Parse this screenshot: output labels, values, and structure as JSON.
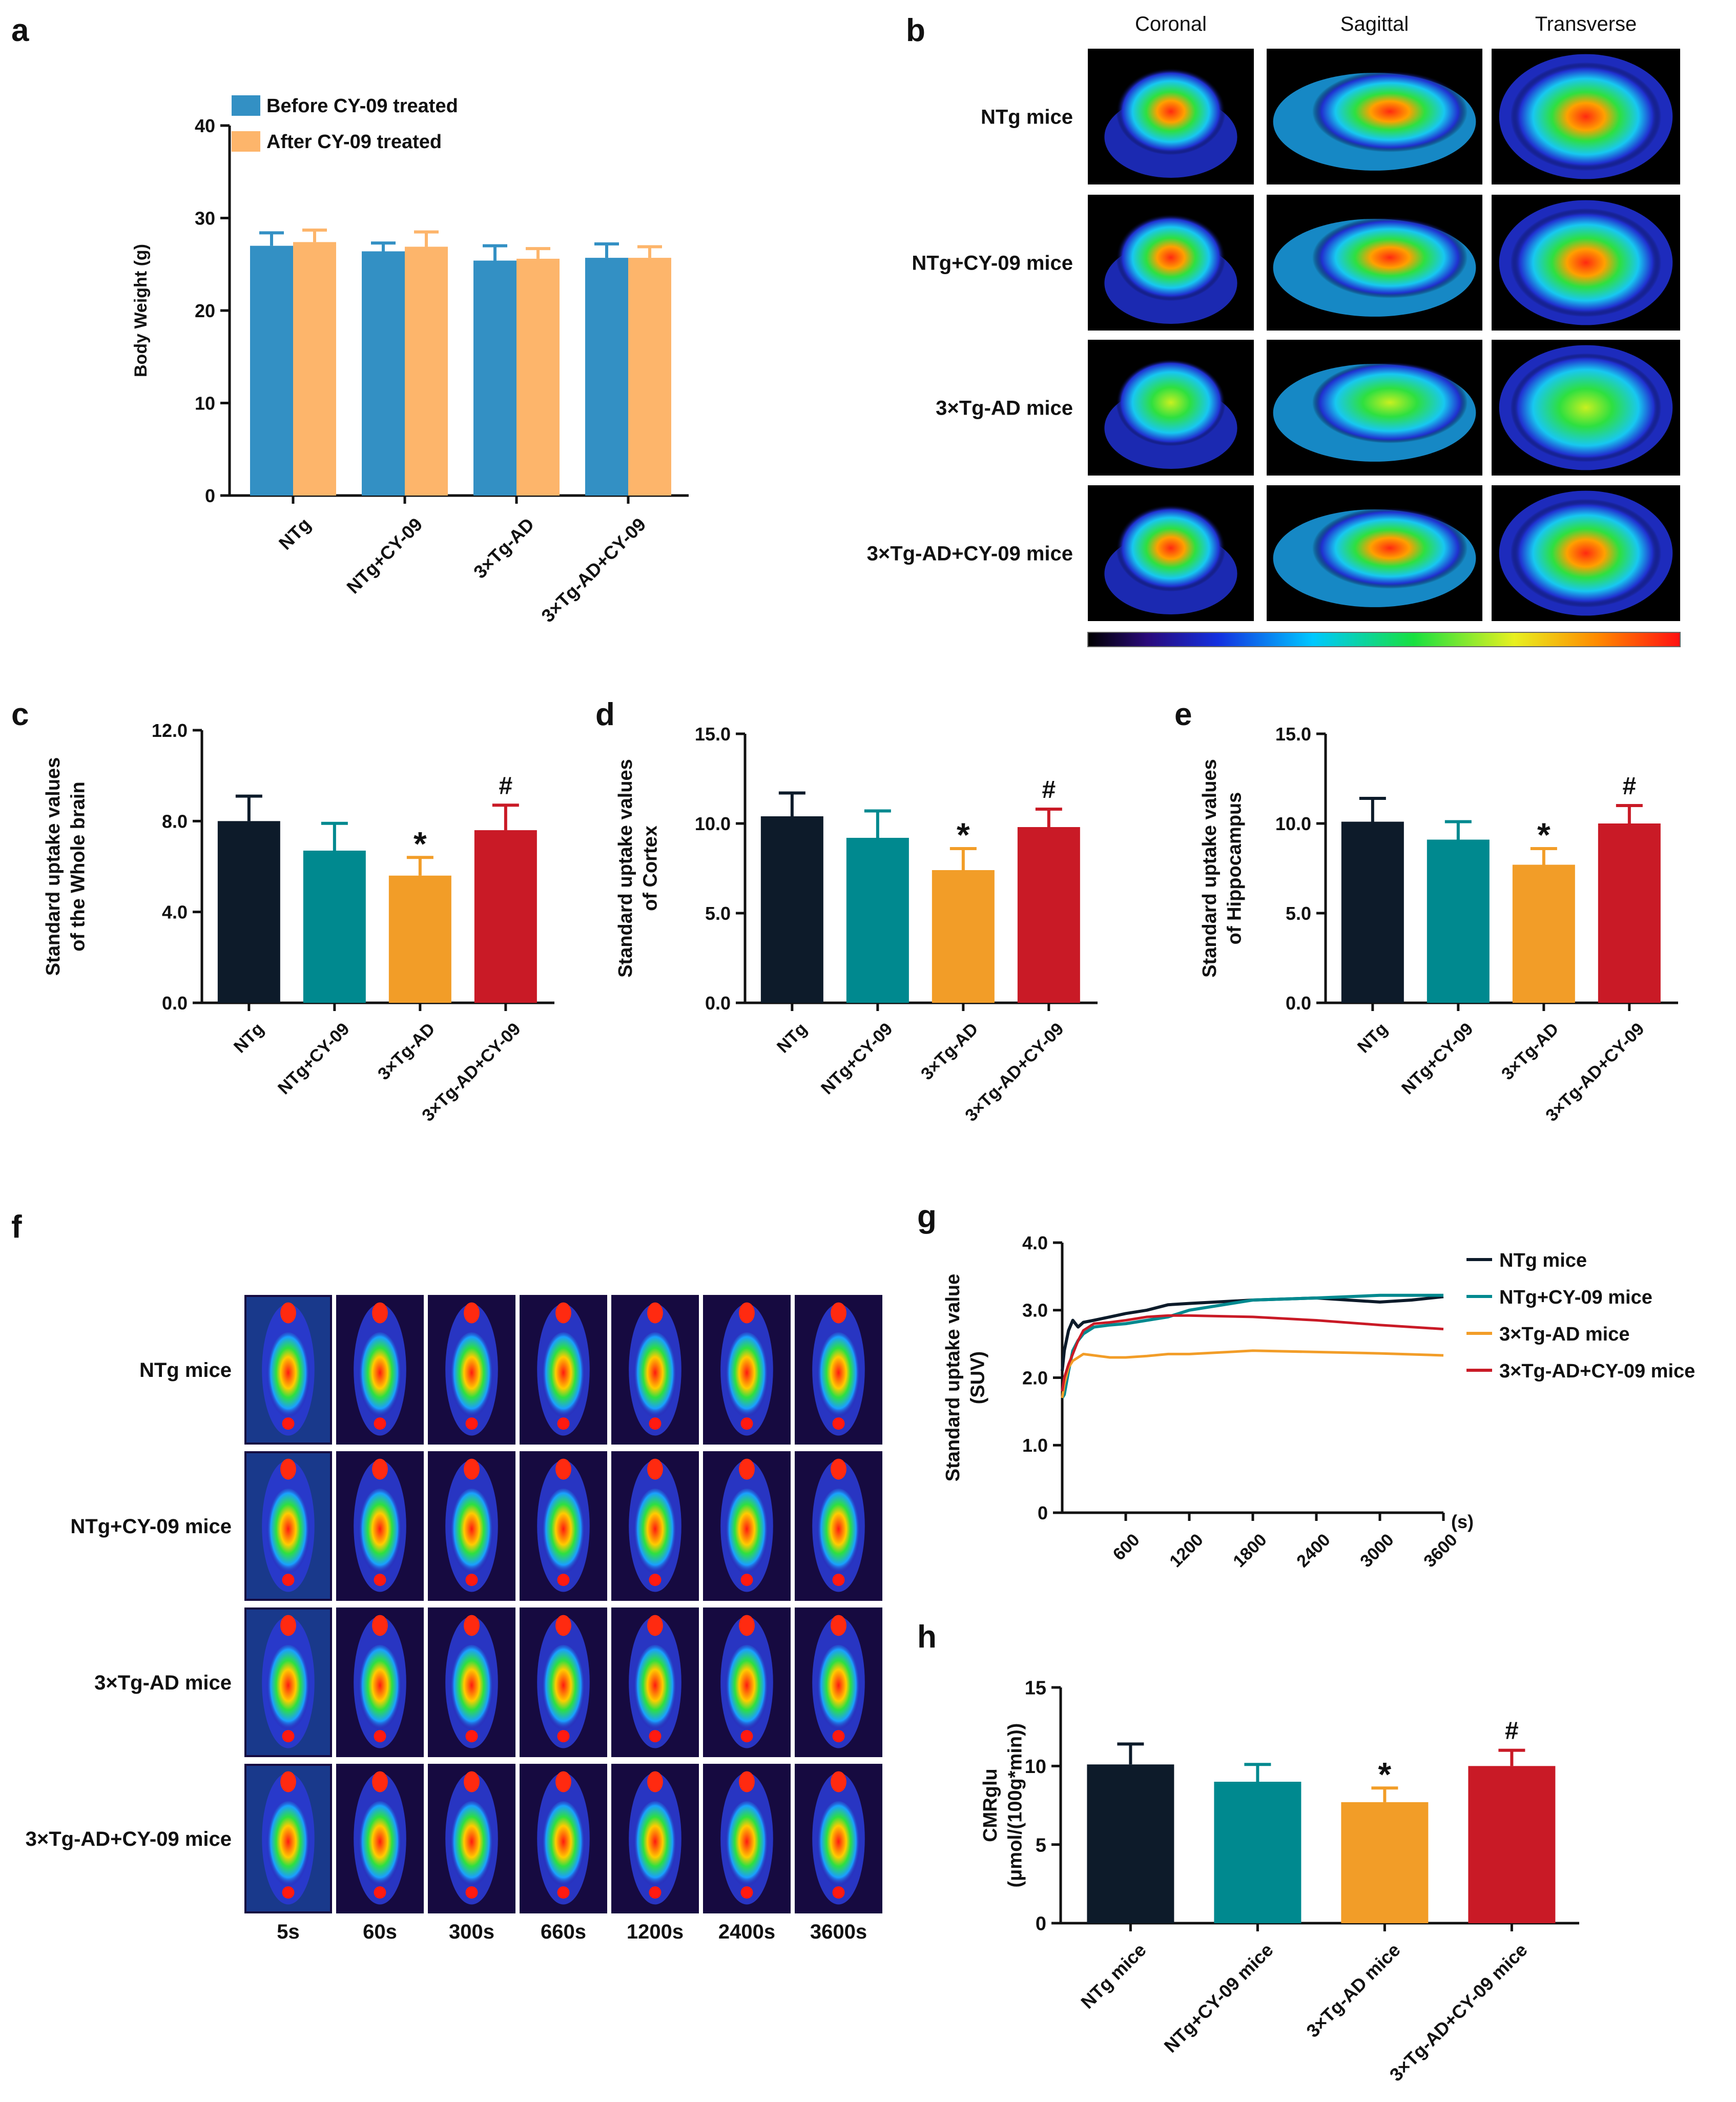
{
  "figure": {
    "panel_labels": [
      "a",
      "b",
      "c",
      "d",
      "e",
      "f",
      "g",
      "h"
    ],
    "b_columns": [
      "Coronal",
      "Sagittal",
      "Transverse"
    ],
    "b_rows": [
      "NTg mice",
      "NTg+CY-09 mice",
      "3×Tg-AD mice",
      "3×Tg-AD+CY-09 mice"
    ],
    "f_rows": [
      "NTg mice",
      "NTg+CY-09 mice",
      "3×Tg-AD mice",
      "3×Tg-AD+CY-09 mice"
    ],
    "f_times": [
      "5s",
      "60s",
      "300s",
      "660s",
      "1200s",
      "2400s",
      "3600s"
    ]
  },
  "colors": {
    "before": "#3390c4",
    "after": "#fdb56b",
    "ntg": "#0d1b2a",
    "ntg_cy09": "#00898f",
    "tgad": "#f29d28",
    "tgad_cy09": "#c91a26"
  },
  "chart_data": [
    {
      "id": "a",
      "type": "bar",
      "ylabel": "Body Weight (g)",
      "categories": [
        "NTg",
        "NTg+CY-09",
        "3×Tg-AD",
        "3×Tg-AD+CY-09"
      ],
      "series": [
        {
          "name": "Before CY-09 treated",
          "values": [
            27,
            26.4,
            25.4,
            25.7
          ],
          "errors": [
            1.4,
            0.9,
            1.6,
            1.5
          ]
        },
        {
          "name": "After CY-09 treated",
          "values": [
            27.4,
            26.9,
            25.6,
            25.7
          ],
          "errors": [
            1.3,
            1.6,
            1.1,
            1.2
          ]
        }
      ],
      "ylim": [
        0,
        40
      ],
      "yticks": [
        "0",
        "10",
        "20",
        "30",
        "40"
      ]
    },
    {
      "id": "c",
      "type": "bar",
      "ylabel_lines": [
        "Standard uptake values",
        "of the Whole brain"
      ],
      "categories": [
        "NTg",
        "NTg+CY-09",
        "3×Tg-AD",
        "3×Tg-AD+CY-09"
      ],
      "values": [
        8.0,
        6.7,
        5.6,
        7.6
      ],
      "errors": [
        1.1,
        1.2,
        0.8,
        1.1
      ],
      "annotations": [
        "",
        "",
        "*",
        "#"
      ],
      "ylim": [
        0,
        12
      ],
      "yticks": [
        "0.0",
        "4.0",
        "8.0",
        "12.0"
      ]
    },
    {
      "id": "d",
      "type": "bar",
      "ylabel_lines": [
        "Standard uptake values",
        "of Cortex"
      ],
      "categories": [
        "NTg",
        "NTg+CY-09",
        "3×Tg-AD",
        "3×Tg-AD+CY-09"
      ],
      "values": [
        10.4,
        9.2,
        7.4,
        9.8
      ],
      "errors": [
        1.3,
        1.5,
        1.2,
        1.0
      ],
      "annotations": [
        "",
        "",
        "*",
        "#"
      ],
      "ylim": [
        0,
        15
      ],
      "yticks": [
        "0.0",
        "5.0",
        "10.0",
        "15.0"
      ]
    },
    {
      "id": "e",
      "type": "bar",
      "ylabel_lines": [
        "Standard uptake values",
        "of Hippocampus"
      ],
      "categories": [
        "NTg",
        "NTg+CY-09",
        "3×Tg-AD",
        "3×Tg-AD+CY-09"
      ],
      "values": [
        10.1,
        9.1,
        7.7,
        10.0
      ],
      "errors": [
        1.3,
        1.0,
        0.9,
        1.0
      ],
      "annotations": [
        "",
        "",
        "*",
        "#"
      ],
      "ylim": [
        0,
        15
      ],
      "yticks": [
        "0.0",
        "5.0",
        "10.0",
        "15.0"
      ]
    },
    {
      "id": "g",
      "type": "line",
      "ylabel_lines": [
        "Standard uptake value",
        "(SUV)"
      ],
      "xlabel": "(s)",
      "xlim": [
        0,
        3600
      ],
      "ylim": [
        0,
        4
      ],
      "xticks": [
        "600",
        "1200",
        "1800",
        "2400",
        "3000",
        "3600"
      ],
      "yticks": [
        "0",
        "1.0",
        "2.0",
        "3.0",
        "4.0"
      ],
      "series": [
        {
          "name": "NTg mice",
          "x": [
            0,
            20,
            60,
            100,
            150,
            200,
            300,
            450,
            600,
            800,
            1000,
            1200,
            1800,
            2400,
            2700,
            3000,
            3300,
            3600
          ],
          "y": [
            2.1,
            2.4,
            2.7,
            2.85,
            2.75,
            2.82,
            2.85,
            2.9,
            2.95,
            3.0,
            3.08,
            3.1,
            3.15,
            3.18,
            3.15,
            3.12,
            3.15,
            3.2
          ]
        },
        {
          "name": "NTg+CY-09 mice",
          "x": [
            0,
            20,
            60,
            100,
            150,
            200,
            300,
            450,
            600,
            800,
            1000,
            1200,
            1800,
            2400,
            3000,
            3600
          ],
          "y": [
            1.7,
            1.75,
            2.1,
            2.4,
            2.55,
            2.65,
            2.75,
            2.78,
            2.8,
            2.85,
            2.9,
            3.0,
            3.15,
            3.18,
            3.22,
            3.22
          ]
        },
        {
          "name": "3×Tg-AD mice",
          "x": [
            0,
            20,
            60,
            100,
            150,
            200,
            300,
            450,
            600,
            800,
            1000,
            1200,
            1800,
            2400,
            3000,
            3600
          ],
          "y": [
            1.7,
            1.9,
            2.15,
            2.25,
            2.3,
            2.35,
            2.33,
            2.3,
            2.3,
            2.32,
            2.35,
            2.35,
            2.4,
            2.38,
            2.36,
            2.33
          ]
        },
        {
          "name": "3×Tg-AD+CY-09 mice",
          "x": [
            0,
            20,
            60,
            100,
            150,
            200,
            300,
            450,
            600,
            800,
            1000,
            1200,
            1800,
            2400,
            3000,
            3600
          ],
          "y": [
            1.8,
            2.0,
            2.2,
            2.35,
            2.55,
            2.7,
            2.8,
            2.82,
            2.85,
            2.9,
            2.92,
            2.92,
            2.9,
            2.85,
            2.78,
            2.72
          ]
        }
      ]
    },
    {
      "id": "h",
      "type": "bar",
      "ylabel_lines": [
        "CMRglu",
        "(μmol/(100g*min))"
      ],
      "categories": [
        "NTg mice",
        "NTg+CY-09 mice",
        "3×Tg-AD mice",
        "3×Tg-AD+CY-09 mice"
      ],
      "values": [
        10.1,
        9.0,
        7.7,
        10.0
      ],
      "errors": [
        1.3,
        1.1,
        0.9,
        1.0
      ],
      "annotations": [
        "",
        "",
        "*",
        "#"
      ],
      "ylim": [
        0,
        15
      ],
      "yticks": [
        "0",
        "5",
        "10",
        "15"
      ]
    }
  ]
}
